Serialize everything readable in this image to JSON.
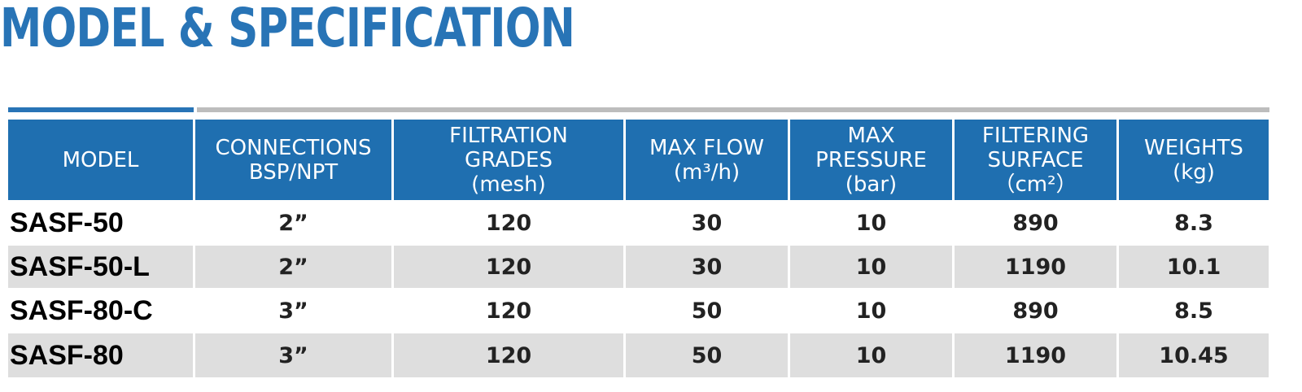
{
  "header": {
    "title": "MODEL & SPECIFICATION"
  },
  "table": {
    "columns": [
      [
        "MODEL"
      ],
      [
        "CONNECTIONS",
        "BSP/NPT"
      ],
      [
        "FILTRATION",
        "GRADES",
        "(mesh)"
      ],
      [
        "MAX FLOW",
        "(m³/h)"
      ],
      [
        "MAX",
        "PRESSURE",
        "(bar)"
      ],
      [
        "FILTERING",
        "SURFACE",
        "（cm²）"
      ],
      [
        "WEIGHTS",
        "(kg)"
      ]
    ],
    "rows": [
      [
        "SASF-50",
        "2”",
        "120",
        "30",
        "10",
        "890",
        "8.3"
      ],
      [
        "SASF-50-L",
        "2”",
        "120",
        "30",
        "10",
        "1190",
        "10.1"
      ],
      [
        "SASF-80-C",
        "3”",
        "120",
        "50",
        "10",
        "890",
        "8.5"
      ],
      [
        "SASF-80",
        "3”",
        "120",
        "50",
        "10",
        "1190",
        "10.45"
      ]
    ]
  }
}
